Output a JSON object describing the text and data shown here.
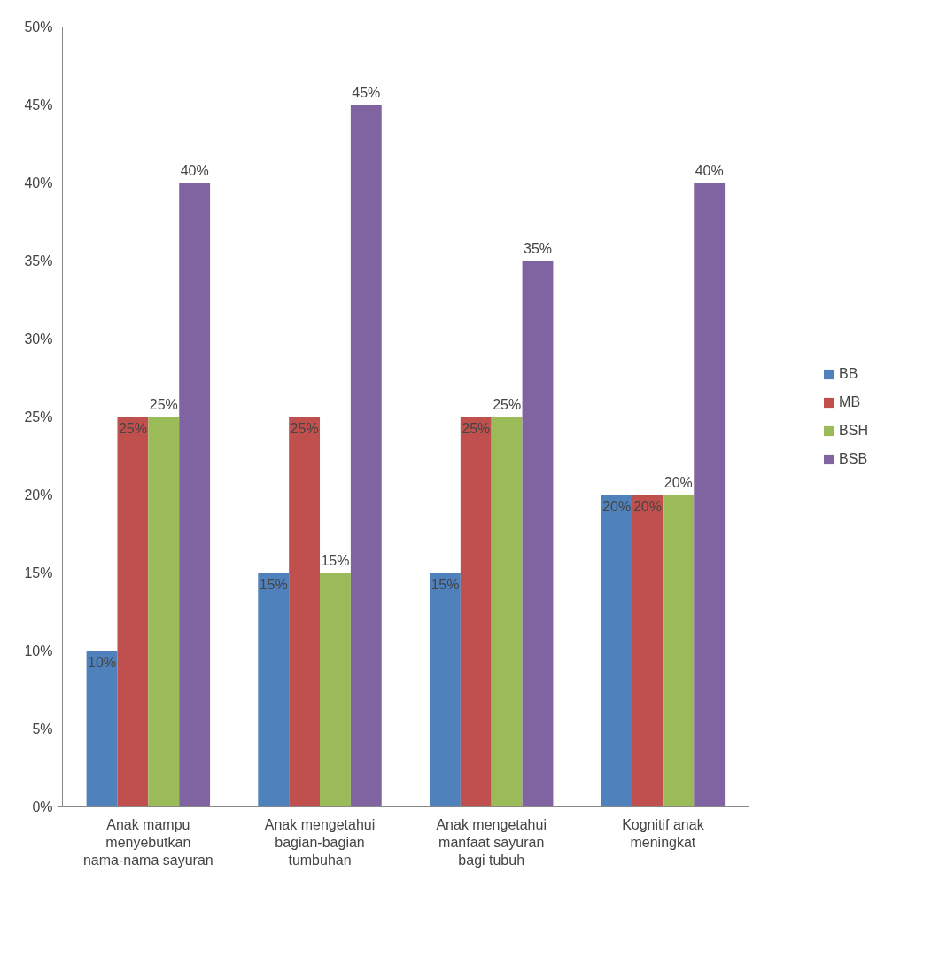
{
  "chart_data": {
    "type": "bar",
    "categories": [
      "Anak mampu menyebutkan nama-nama sayuran",
      "Anak mengetahui bagian-bagian tumbuhan",
      "Anak mengetahui manfaat sayuran bagi tubuh",
      "Kognitif anak meningkat"
    ],
    "series": [
      {
        "name": "BB",
        "color": "#4f81bd",
        "values": [
          10,
          15,
          15,
          20
        ],
        "value_labels": [
          "10%",
          "15%",
          "15%",
          "20%"
        ]
      },
      {
        "name": "MB",
        "color": "#c0504d",
        "values": [
          25,
          25,
          25,
          20
        ],
        "value_labels": [
          "25%",
          "25%",
          "25%",
          "20%"
        ]
      },
      {
        "name": "BSH",
        "color": "#9bbb59",
        "values": [
          25,
          15,
          25,
          20
        ],
        "value_labels": [
          "25%",
          "15%",
          "25%",
          "20%"
        ]
      },
      {
        "name": "BSB",
        "color": "#8064a2",
        "values": [
          40,
          45,
          35,
          40
        ],
        "value_labels": [
          "40%",
          "45%",
          "35%",
          "40%"
        ]
      }
    ],
    "ylim": [
      0,
      50
    ],
    "yticks": [
      {
        "value": 0,
        "label": "0%"
      },
      {
        "value": 5,
        "label": "5%"
      },
      {
        "value": 10,
        "label": "10%"
      },
      {
        "value": 15,
        "label": "15%"
      },
      {
        "value": 20,
        "label": "20%"
      },
      {
        "value": 25,
        "label": "25%"
      },
      {
        "value": 30,
        "label": "30%"
      },
      {
        "value": 35,
        "label": "35%"
      },
      {
        "value": 40,
        "label": "40%"
      },
      {
        "value": 45,
        "label": "45%"
      },
      {
        "value": 50,
        "label": "50%"
      }
    ],
    "grid": "y",
    "legend": "right"
  }
}
